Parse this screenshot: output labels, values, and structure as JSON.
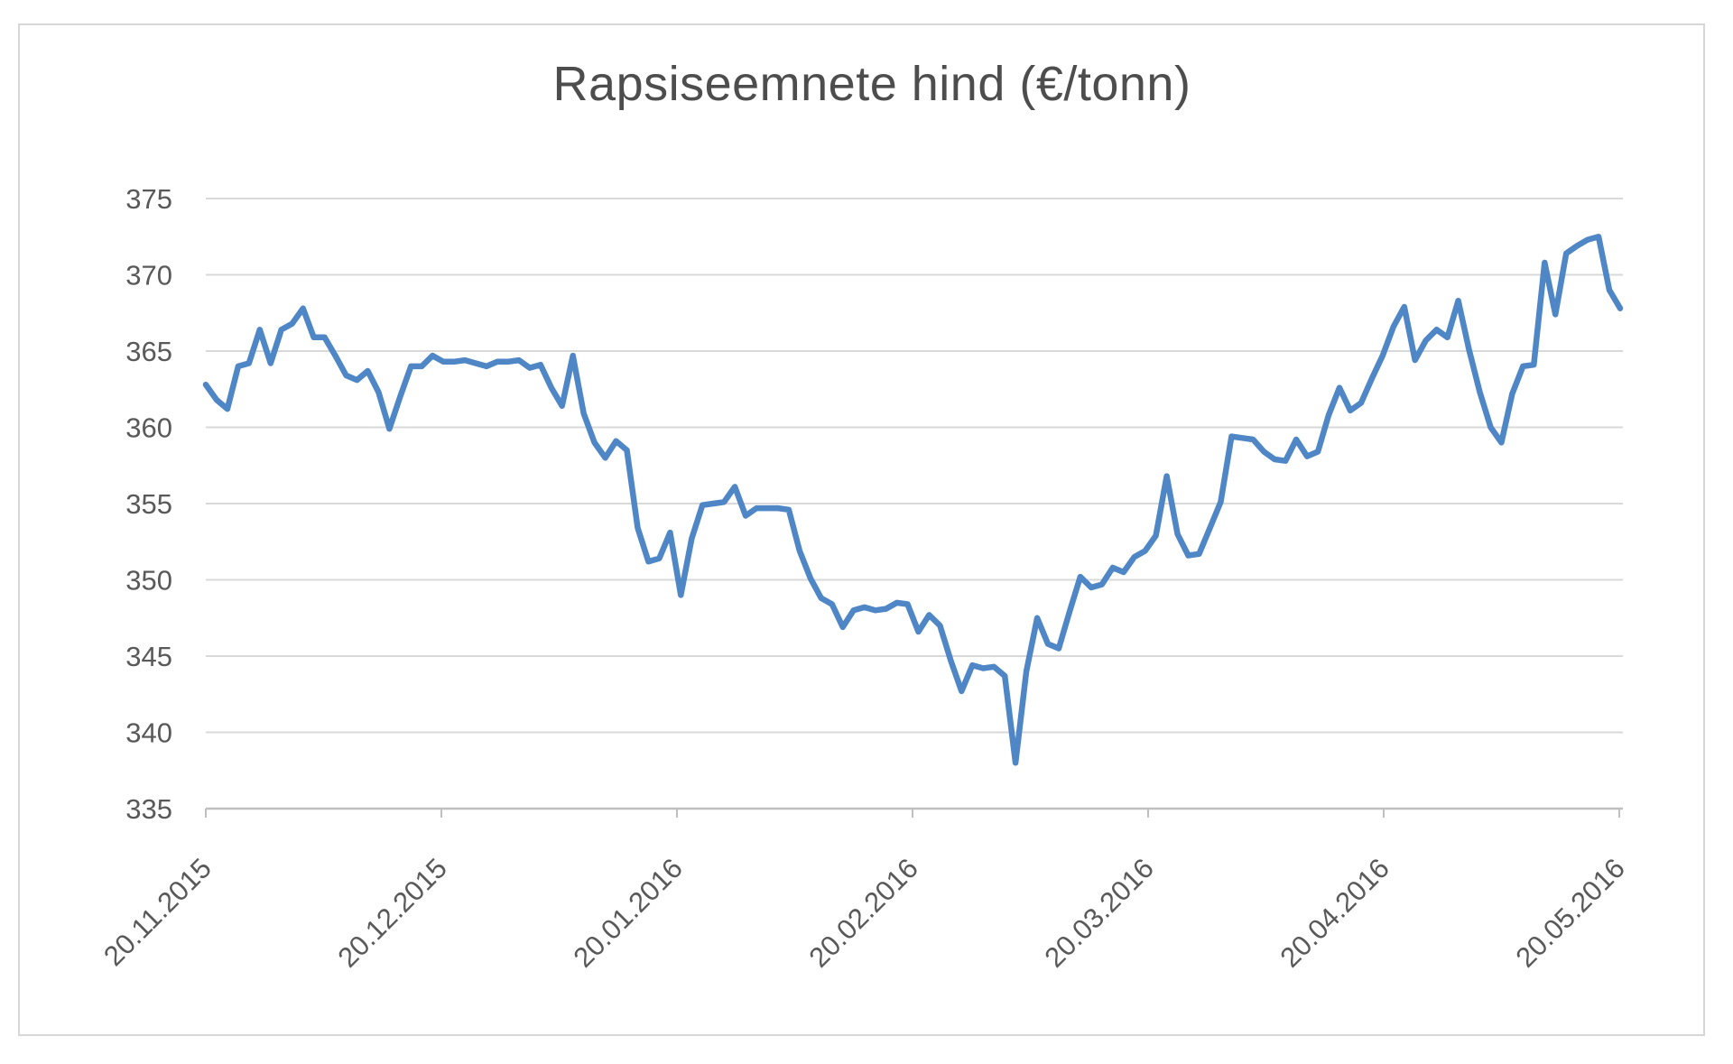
{
  "chart_data": {
    "type": "line",
    "title": "Rapsiseemnete hind (€/tonn)",
    "xlabel": "",
    "ylabel": "",
    "ylim": [
      335,
      375
    ],
    "y_ticks": [
      335,
      340,
      345,
      350,
      355,
      360,
      365,
      370,
      375
    ],
    "x_tick_labels": [
      "20.11.2015",
      "20.12.2015",
      "20.01.2016",
      "20.02.2016",
      "20.03.2016",
      "20.04.2016",
      "20.05.2016"
    ],
    "grid": true,
    "legend_position": "none",
    "series": [
      {
        "color": "#4e86c6",
        "values": [
          362.8,
          361.8,
          361.2,
          364.0,
          364.2,
          366.4,
          364.2,
          366.4,
          366.8,
          367.8,
          365.9,
          365.9,
          364.7,
          363.4,
          363.1,
          363.7,
          362.3,
          359.9,
          362.0,
          364.0,
          364.0,
          364.7,
          364.3,
          364.3,
          364.4,
          364.2,
          364.0,
          364.3,
          364.3,
          364.4,
          363.9,
          364.1,
          362.6,
          361.4,
          364.7,
          360.9,
          359.0,
          358.0,
          359.1,
          358.5,
          353.4,
          351.2,
          351.4,
          353.1,
          349.0,
          352.7,
          354.9,
          355.0,
          355.1,
          356.1,
          354.2,
          354.7,
          354.7,
          354.7,
          354.6,
          351.9,
          350.1,
          348.8,
          348.4,
          346.9,
          348.0,
          348.2,
          348.0,
          348.1,
          348.5,
          348.4,
          346.6,
          347.7,
          347.0,
          344.7,
          342.7,
          344.4,
          344.2,
          344.3,
          343.7,
          338.0,
          344.0,
          347.5,
          345.8,
          345.5,
          347.9,
          350.2,
          349.5,
          349.7,
          350.8,
          350.5,
          351.5,
          351.9,
          352.9,
          356.8,
          353.0,
          351.6,
          351.7,
          353.4,
          355.1,
          359.4,
          359.3,
          359.2,
          358.4,
          357.9,
          357.8,
          359.2,
          358.1,
          358.4,
          360.8,
          362.6,
          361.1,
          361.6,
          363.2,
          364.7,
          366.6,
          367.9,
          364.4,
          365.7,
          366.4,
          365.9,
          368.3,
          365.1,
          362.3,
          360.0,
          359.0,
          362.2,
          364.0,
          364.1,
          370.8,
          367.4,
          371.4,
          371.9,
          372.3,
          372.5,
          369.0,
          367.8
        ]
      }
    ],
    "colors": {
      "gridline": "#d9d9d9",
      "axis_line": "#bfbfbf",
      "tick_label": "#595959",
      "title": "#4d4d4d",
      "frame_border": "#d7d7d7",
      "background": "#ffffff"
    }
  }
}
